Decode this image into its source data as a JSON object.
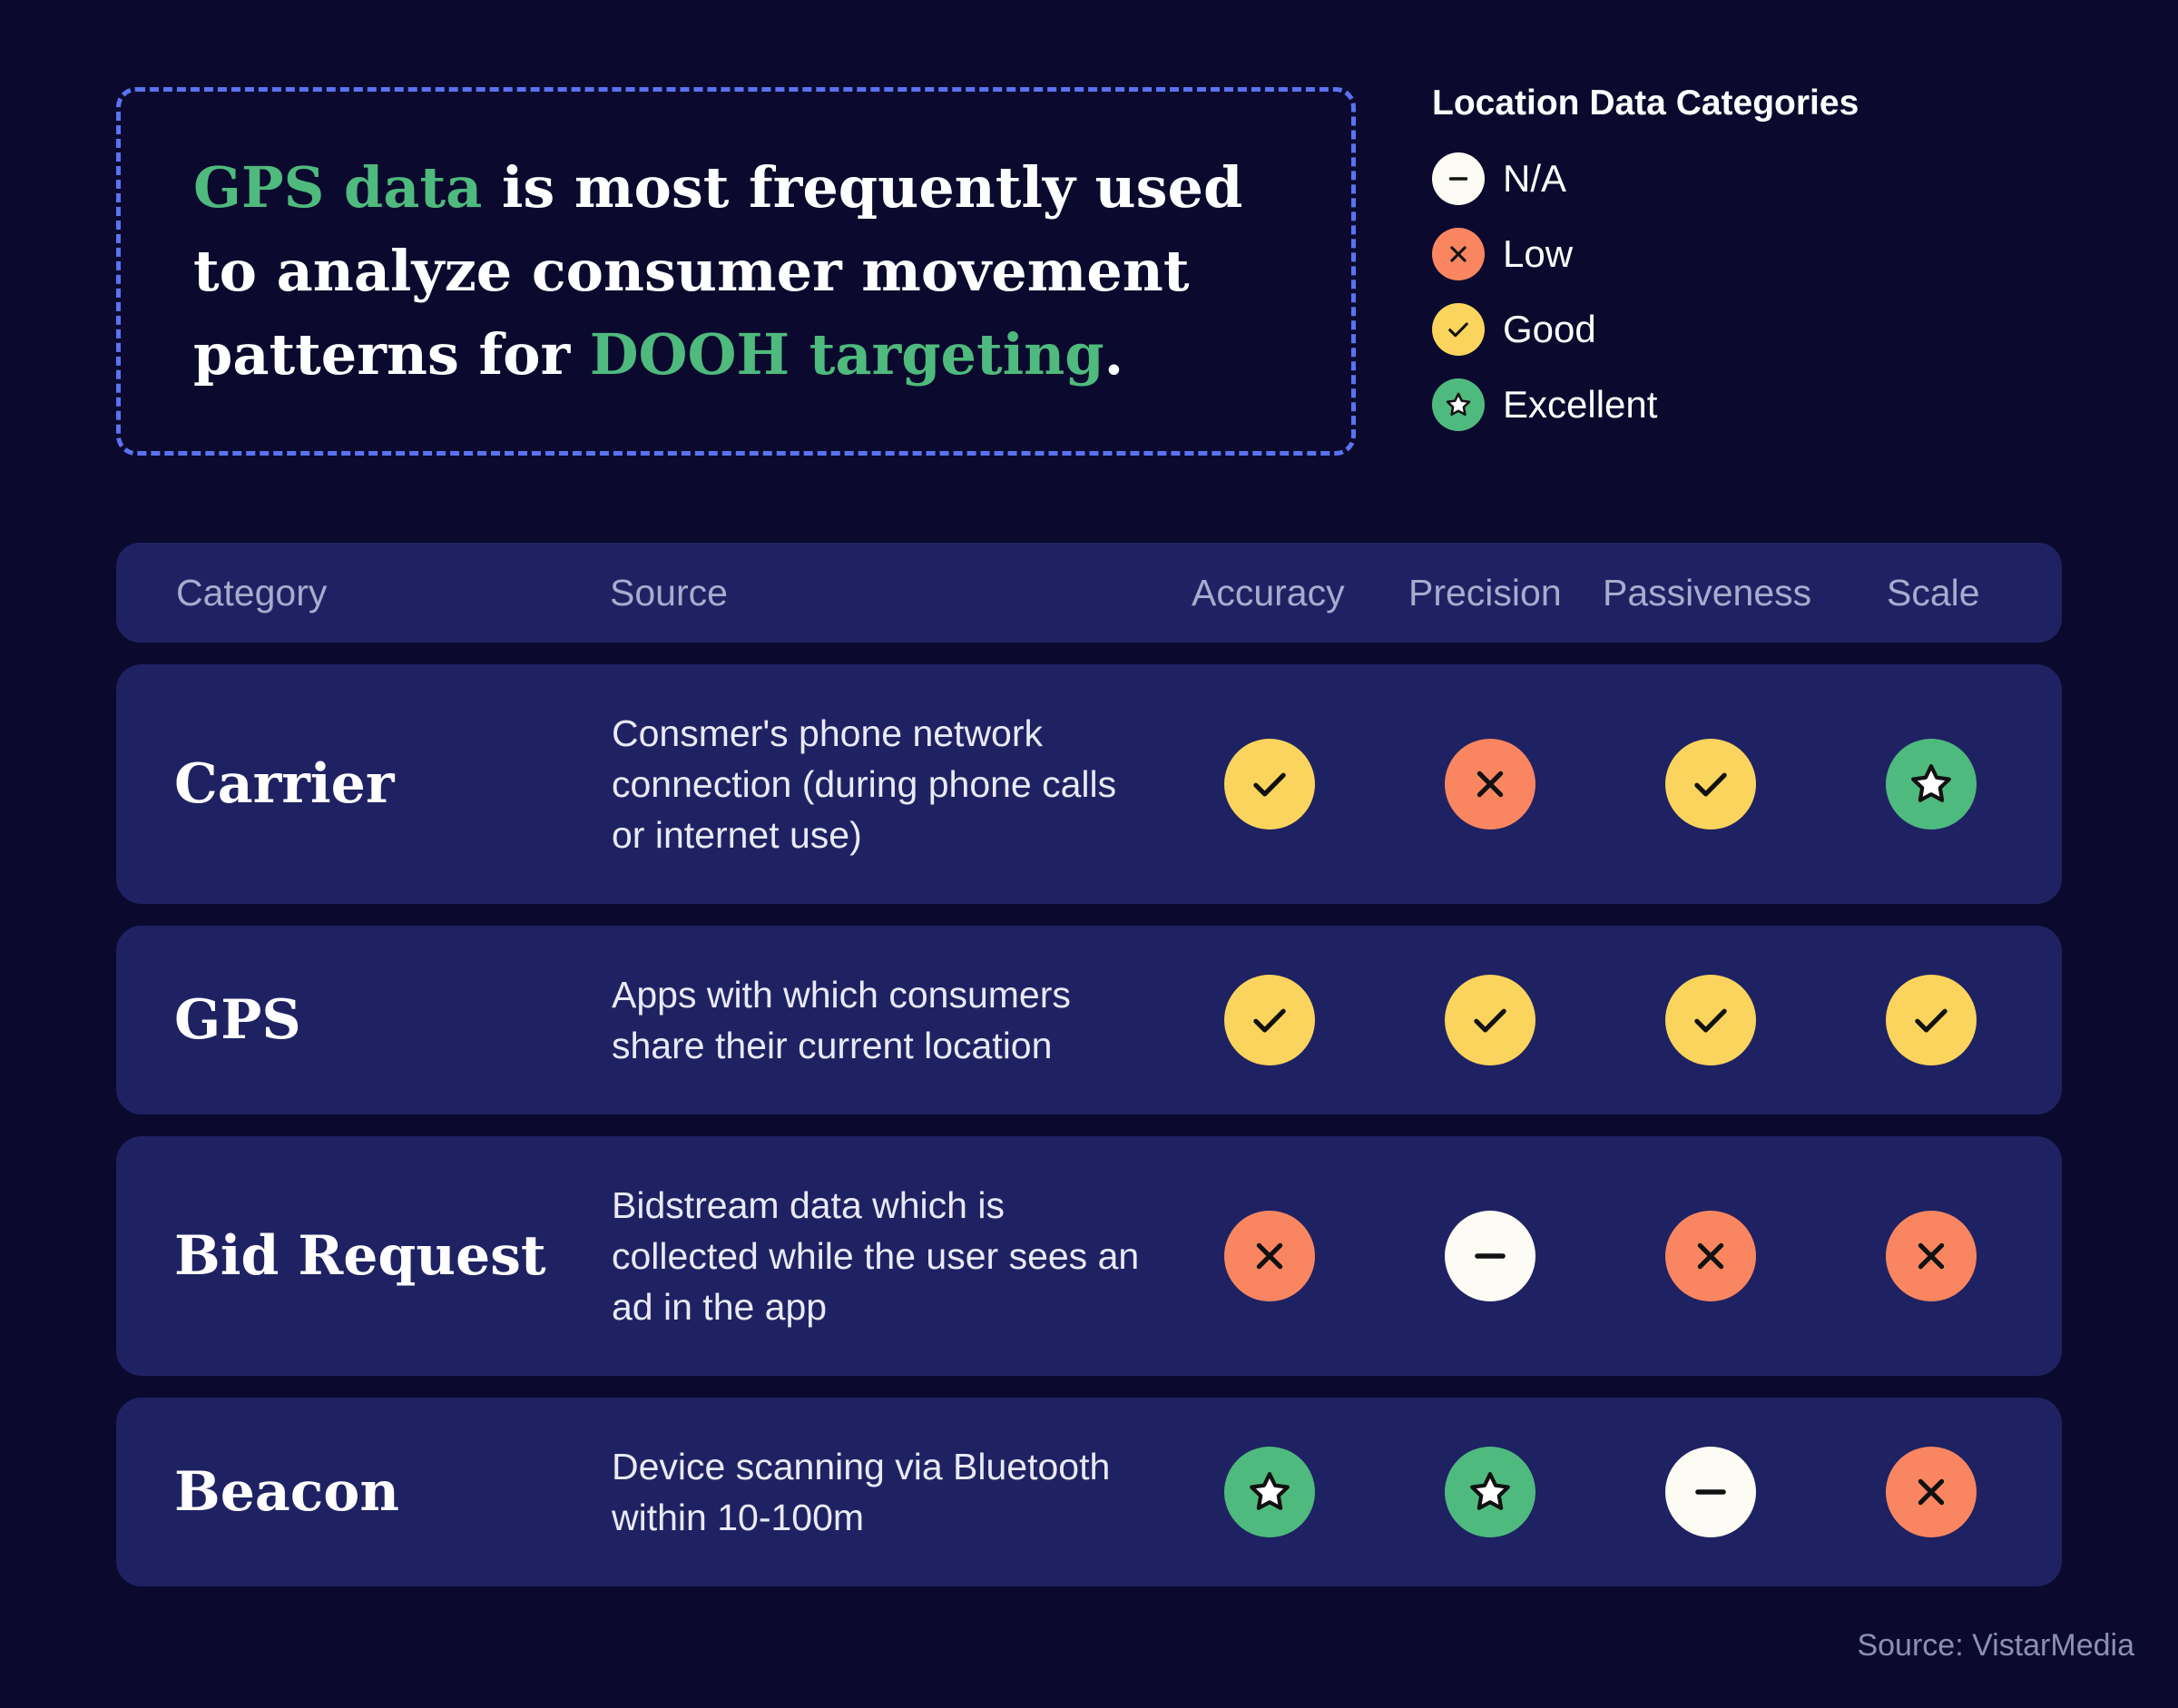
{
  "headline": {
    "part1": "GPS data",
    "part2": " is most frequently used to analyze consumer movement patterns for ",
    "part3": "DOOH targeting",
    "part4": "."
  },
  "legend": {
    "title": "Location Data Categories",
    "items": [
      {
        "label": "N/A",
        "icon": "minus-icon"
      },
      {
        "label": "Low",
        "icon": "x-icon"
      },
      {
        "label": "Good",
        "icon": "check-icon"
      },
      {
        "label": "Excellent",
        "icon": "star-icon"
      }
    ]
  },
  "table": {
    "headers": {
      "category": "Category",
      "source": "Source",
      "accuracy": "Accuracy",
      "precision": "Precision",
      "passiveness": "Passiveness",
      "scale": "Scale"
    },
    "rows": [
      {
        "category": "Carrier",
        "source": "Consmer's phone network connection (during phone calls or internet use)",
        "ratings": [
          "Good",
          "Low",
          "Good",
          "Excellent"
        ]
      },
      {
        "category": "GPS",
        "source": "Apps with which consumers share their current location",
        "ratings": [
          "Good",
          "Good",
          "Good",
          "Good"
        ]
      },
      {
        "category": "Bid Request",
        "source": "Bidstream data which is collected while the user sees an ad in the app",
        "ratings": [
          "Low",
          "N/A",
          "Low",
          "Low"
        ]
      },
      {
        "category": "Beacon",
        "source": "Device scanning via Bluetooth within 10-100m",
        "ratings": [
          "Excellent",
          "Excellent",
          "N/A",
          "Low"
        ]
      }
    ]
  },
  "colors": {
    "background": "#0b0a2e",
    "panel": "#1f2262",
    "accent_green": "#4fba7d",
    "good": "#fad45c",
    "low": "#f98660",
    "excellent": "#4fba7d",
    "na": "#fdfcf4",
    "dashed_border": "#5a73f0"
  },
  "footer": {
    "source": "Source: VistarMedia"
  }
}
